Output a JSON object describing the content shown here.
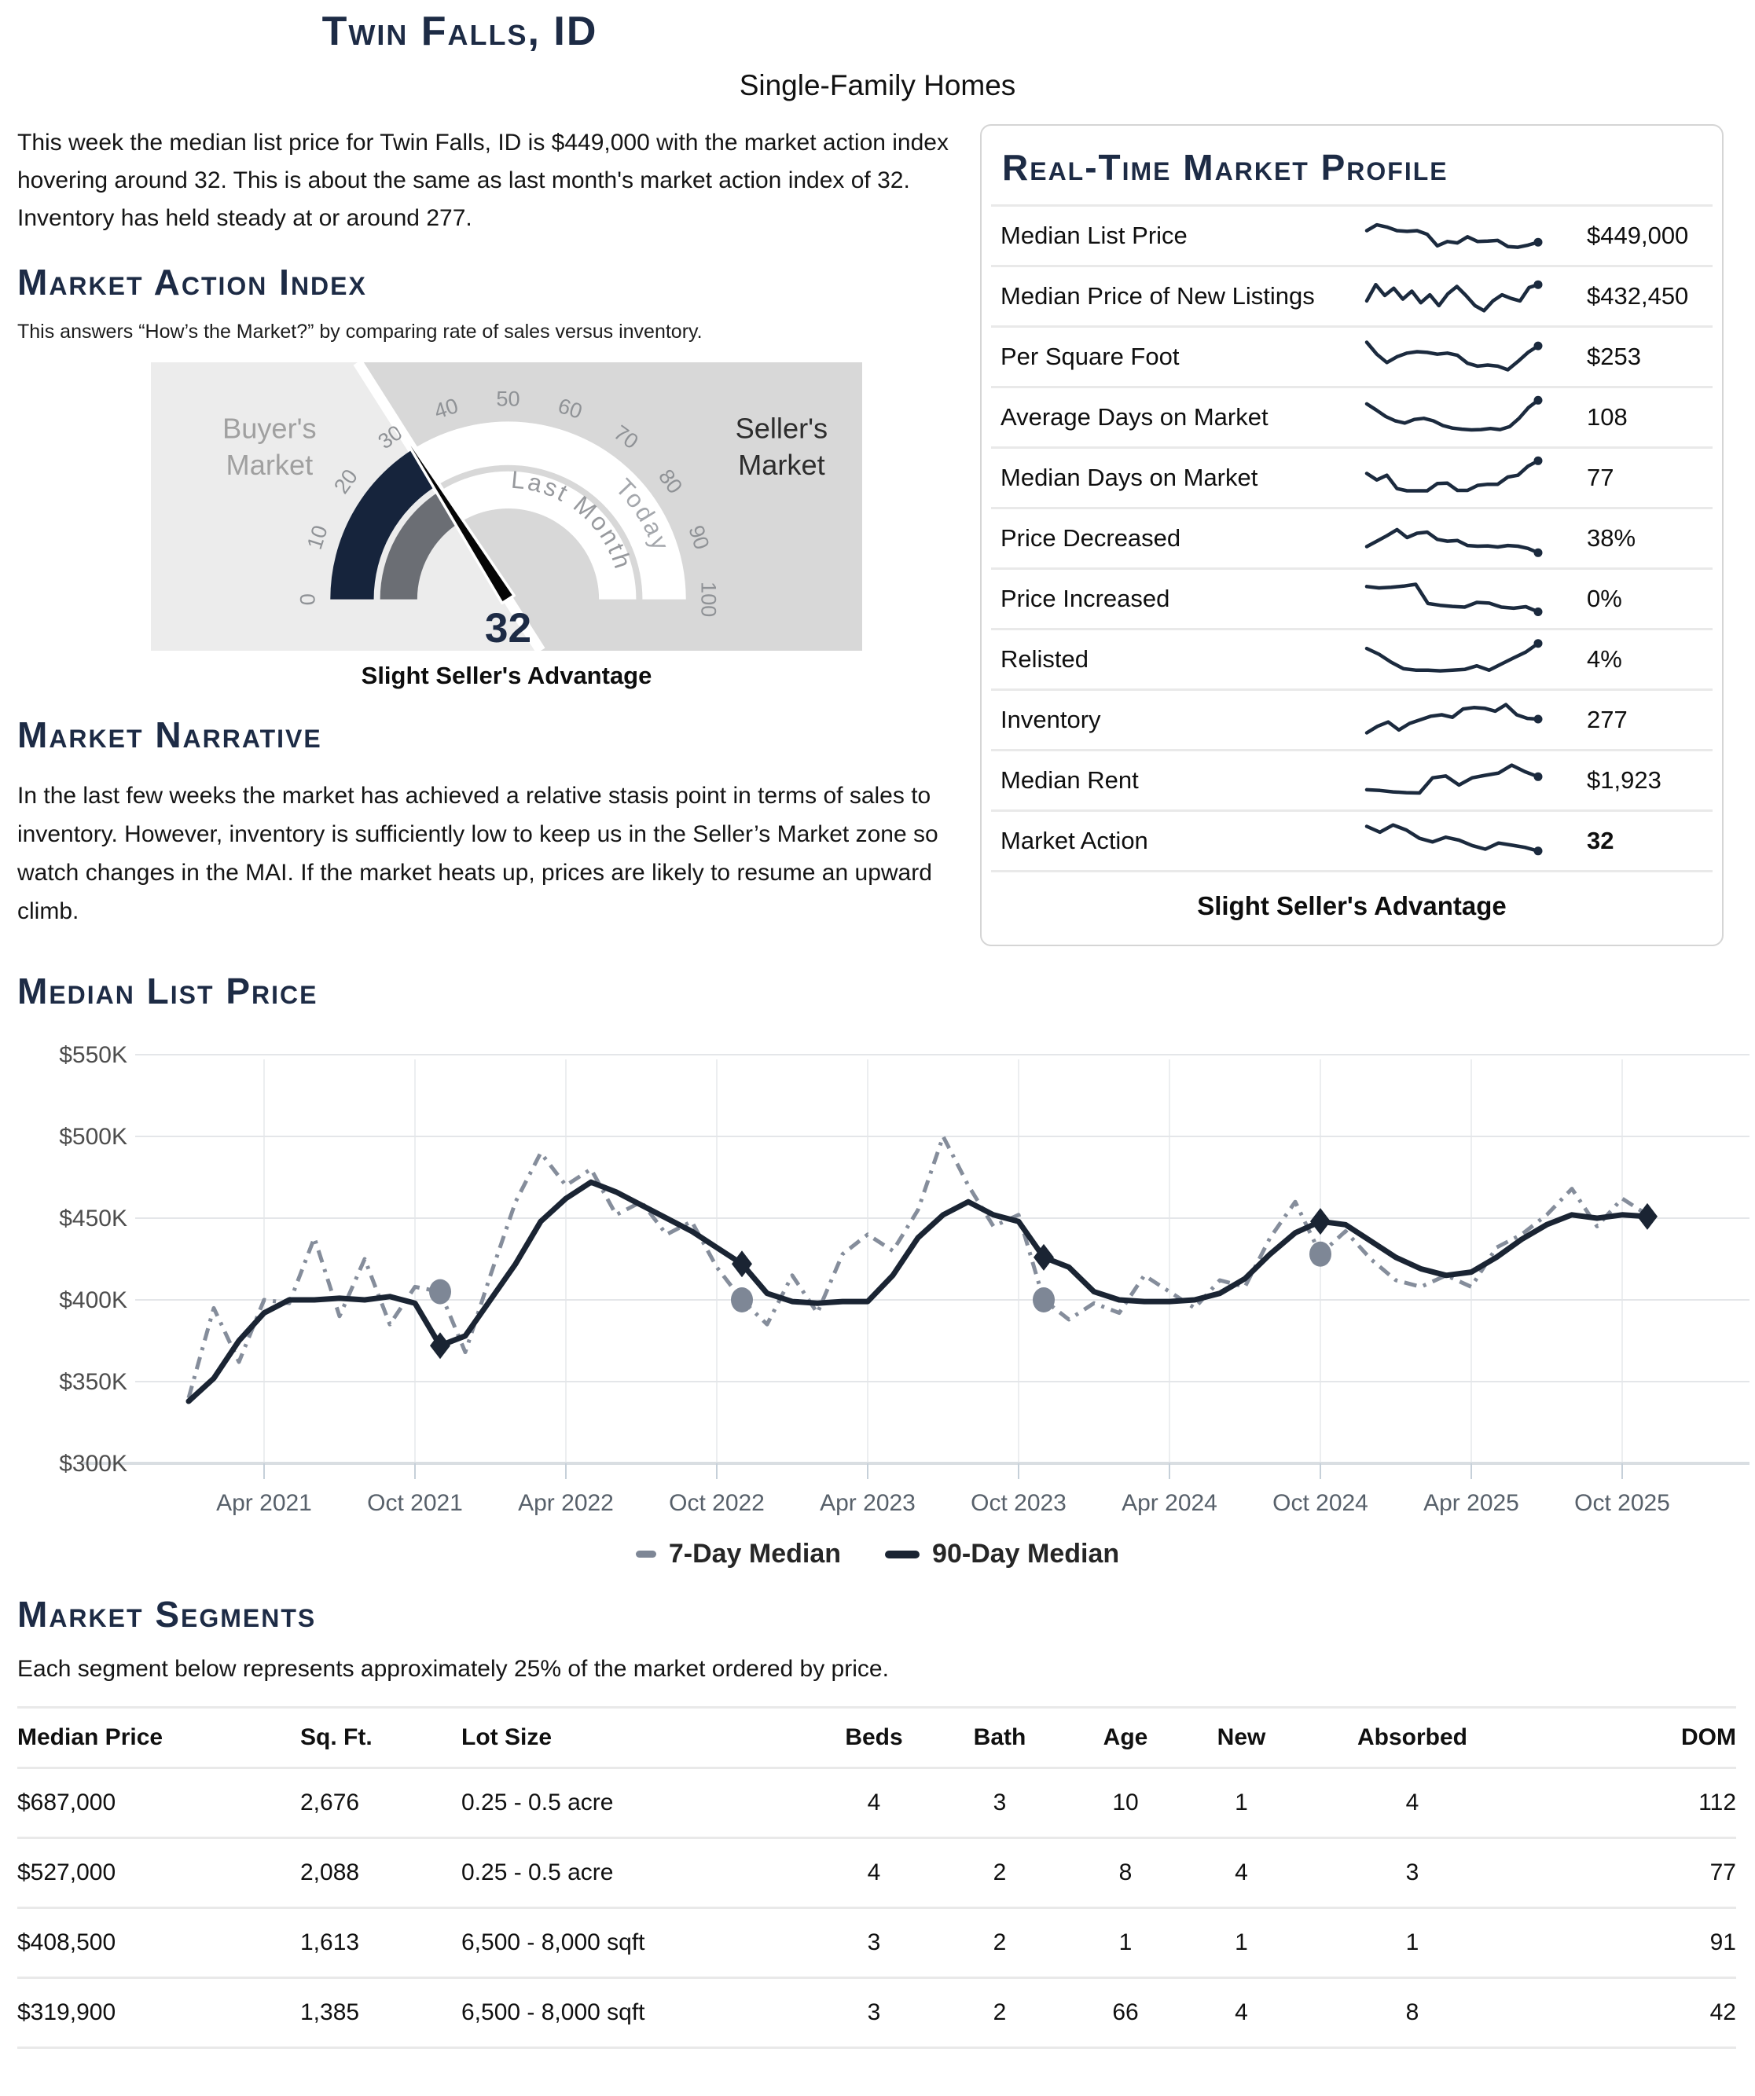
{
  "header": {
    "city": "Twin Falls, ID",
    "subtitle": "Single-Family Homes"
  },
  "intro": "This week the median list price for Twin Falls, ID is $449,000 with the market action index hovering around 32. This is about the same as last month's market action index of 32. Inventory has held steady at or around 277.",
  "mai": {
    "title": "Market Action Index",
    "subtitle": "This answers “How’s the Market?” by comparing rate of sales versus inventory.",
    "gauge": {
      "value": 32,
      "value_label": "32",
      "min": 0,
      "max": 100,
      "ticks": [
        0,
        10,
        20,
        30,
        40,
        50,
        60,
        70,
        80,
        90,
        100
      ],
      "today_fill_to": 32,
      "last_month_fill_to": 32,
      "left_zone_label": "Buyer's Market",
      "right_zone_label": "Seller's Market",
      "inner_arc_label": "Last Month",
      "outer_arc_label": "Today",
      "status": "Slight Seller's Advantage",
      "colors": {
        "today_fill": "#16243c",
        "last_month_fill": "#6b6e74",
        "bg_left": "#ececec",
        "bg_right": "#d8d8d8",
        "tick_text": "#8f9296",
        "needle": "#050505",
        "value_text": "#1d2b45",
        "buyer_text": "#a0a0a0",
        "seller_text": "#2d2d2d"
      }
    }
  },
  "profile": {
    "title": "Real-Time Market Profile",
    "rows": [
      {
        "label": "Median List Price",
        "value": "$449,000",
        "bold": false,
        "spark": [
          0.62,
          0.78,
          0.72,
          0.62,
          0.6,
          0.62,
          0.52,
          0.2,
          0.32,
          0.28,
          0.45,
          0.32,
          0.33,
          0.35,
          0.18,
          0.16,
          0.22,
          0.3
        ]
      },
      {
        "label": "Median Price of New Listings",
        "value": "$432,450",
        "bold": false,
        "spark": [
          0.35,
          0.8,
          0.5,
          0.7,
          0.4,
          0.62,
          0.3,
          0.52,
          0.22,
          0.55,
          0.75,
          0.5,
          0.22,
          0.08,
          0.35,
          0.52,
          0.42,
          0.35,
          0.72,
          0.8
        ]
      },
      {
        "label": "Per Square Foot",
        "value": "$253",
        "bold": false,
        "spark": [
          0.88,
          0.55,
          0.32,
          0.48,
          0.58,
          0.62,
          0.6,
          0.55,
          0.58,
          0.52,
          0.3,
          0.22,
          0.25,
          0.22,
          0.12,
          0.35,
          0.6,
          0.78
        ]
      },
      {
        "label": "Average Days on Market",
        "value": "108",
        "bold": false,
        "spark": [
          0.85,
          0.68,
          0.5,
          0.38,
          0.32,
          0.42,
          0.45,
          0.38,
          0.25,
          0.18,
          0.15,
          0.13,
          0.14,
          0.17,
          0.14,
          0.22,
          0.45,
          0.75,
          0.95
        ]
      },
      {
        "label": "Median Days on Market",
        "value": "77",
        "bold": false,
        "spark": [
          0.6,
          0.42,
          0.55,
          0.18,
          0.12,
          0.12,
          0.12,
          0.32,
          0.33,
          0.13,
          0.13,
          0.27,
          0.3,
          0.3,
          0.5,
          0.55,
          0.8,
          0.95
        ]
      },
      {
        "label": "Price Decreased",
        "value": "38%",
        "bold": false,
        "spark": [
          0.25,
          0.4,
          0.55,
          0.72,
          0.5,
          0.62,
          0.65,
          0.45,
          0.4,
          0.42,
          0.28,
          0.26,
          0.27,
          0.24,
          0.28,
          0.26,
          0.2,
          0.08
        ]
      },
      {
        "label": "Price Increased",
        "value": "0%",
        "bold": false,
        "spark": [
          0.82,
          0.78,
          0.8,
          0.83,
          0.88,
          0.35,
          0.3,
          0.27,
          0.25,
          0.38,
          0.36,
          0.25,
          0.22,
          0.26,
          0.12
        ]
      },
      {
        "label": "Relisted",
        "value": "4%",
        "bold": false,
        "spark": [
          0.78,
          0.62,
          0.4,
          0.22,
          0.18,
          0.18,
          0.16,
          0.18,
          0.2,
          0.3,
          0.18,
          0.35,
          0.52,
          0.68,
          0.92
        ]
      },
      {
        "label": "Inventory",
        "value": "277",
        "bold": false,
        "spark": [
          0.12,
          0.3,
          0.42,
          0.2,
          0.38,
          0.48,
          0.58,
          0.62,
          0.55,
          0.78,
          0.82,
          0.8,
          0.72,
          0.9,
          0.62,
          0.52,
          0.5
        ]
      },
      {
        "label": "Median Rent",
        "value": "$1,923",
        "bold": false,
        "spark": [
          0.22,
          0.2,
          0.16,
          0.14,
          0.13,
          0.55,
          0.6,
          0.35,
          0.55,
          0.62,
          0.68,
          0.9,
          0.72,
          0.58
        ]
      },
      {
        "label": "Market Action",
        "value": "32",
        "bold": true,
        "spark": [
          0.88,
          0.72,
          0.92,
          0.78,
          0.55,
          0.45,
          0.58,
          0.5,
          0.35,
          0.25,
          0.42,
          0.36,
          0.3,
          0.2
        ]
      }
    ],
    "footer": "Slight Seller's Advantage",
    "spark_color": "#1b2a3e"
  },
  "narrative": {
    "title": "Market Narrative",
    "text": "In the last few weeks the market has achieved a relative stasis point in terms of sales to inventory. However, inventory is sufficiently low to keep us in the Seller’s Market zone so watch changes in the MAI. If the market heats up, prices are likely to resume an upward climb."
  },
  "chart_data": {
    "type": "line",
    "title": "Median List Price",
    "x_unit": "month",
    "x_start": "Jan 2021",
    "x_tick_indices": [
      3,
      9,
      15,
      21,
      27,
      33,
      39,
      45,
      51,
      57
    ],
    "x_tick_labels": [
      "Apr 2021",
      "Oct 2021",
      "Apr 2022",
      "Oct 2022",
      "Apr 2023",
      "Oct 2023",
      "Apr 2024",
      "Oct 2024",
      "Apr 2025",
      "Oct 2025"
    ],
    "y_tick_labels": [
      "$550K",
      "$500K",
      "$450K",
      "$400K",
      "$350K",
      "$300K"
    ],
    "y_tick_values": [
      550,
      500,
      450,
      400,
      350,
      300
    ],
    "ylim": [
      300,
      560
    ],
    "grid": true,
    "legend": [
      "7-Day Median",
      "90-Day Median"
    ],
    "series": [
      {
        "name": "7-Day Median",
        "color": "#7e8796",
        "style": "dashed",
        "marker": "circle",
        "marker_indices": [
          10,
          22,
          34,
          45
        ],
        "values_k": [
          340,
          395,
          362,
          400,
          398,
          438,
          390,
          425,
          385,
          408,
          405,
          368,
          415,
          460,
          490,
          470,
          480,
          452,
          460,
          440,
          448,
          420,
          400,
          385,
          415,
          392,
          428,
          440,
          430,
          455,
          500,
          470,
          445,
          452,
          400,
          388,
          398,
          392,
          415,
          405,
          395,
          412,
          408,
          438,
          460,
          428,
          442,
          425,
          412,
          408,
          415,
          408,
          432,
          440,
          452,
          468,
          445,
          462,
          452
        ]
      },
      {
        "name": "90-Day Median",
        "color": "#1a2433",
        "style": "solid",
        "marker": "diamond",
        "marker_indices": [
          10,
          22,
          34,
          45,
          58
        ],
        "values_k": [
          338,
          352,
          375,
          392,
          400,
          400,
          401,
          400,
          402,
          398,
          372,
          378,
          400,
          422,
          448,
          462,
          472,
          466,
          458,
          450,
          442,
          432,
          422,
          404,
          399,
          398,
          399,
          399,
          415,
          438,
          452,
          460,
          452,
          448,
          426,
          420,
          405,
          400,
          399,
          399,
          400,
          404,
          413,
          428,
          441,
          448,
          446,
          436,
          426,
          419,
          415,
          417,
          426,
          437,
          446,
          452,
          450,
          452,
          451
        ]
      }
    ]
  },
  "segments": {
    "title": "Market Segments",
    "intro": "Each segment below represents approximately 25% of the market ordered by price.",
    "columns": [
      "Median Price",
      "Sq. Ft.",
      "Lot Size",
      "Beds",
      "Bath",
      "Age",
      "New",
      "Absorbed",
      "DOM"
    ],
    "rows": [
      [
        "$687,000",
        "2,676",
        "0.25 - 0.5 acre",
        "4",
        "3",
        "10",
        "1",
        "4",
        "112"
      ],
      [
        "$527,000",
        "2,088",
        "0.25 - 0.5 acre",
        "4",
        "2",
        "8",
        "4",
        "3",
        "77"
      ],
      [
        "$408,500",
        "1,613",
        "6,500 - 8,000 sqft",
        "3",
        "2",
        "1",
        "1",
        "1",
        "91"
      ],
      [
        "$319,900",
        "1,385",
        "6,500 - 8,000 sqft",
        "3",
        "2",
        "66",
        "4",
        "8",
        "42"
      ]
    ]
  }
}
